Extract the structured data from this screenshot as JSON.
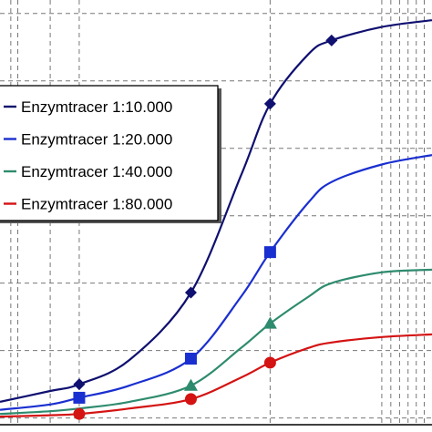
{
  "chart_data": {
    "type": "line",
    "title": "",
    "xlabel": "",
    "ylabel": "",
    "xscale": "log",
    "xlim": [
      0.75,
      3.6
    ],
    "ylim": [
      -0.05,
      3.1
    ],
    "x_gridlines": [
      0.78,
      0.8,
      0.9,
      1,
      2,
      3,
      3.1,
      3.2,
      3.3,
      3.4,
      3.5
    ],
    "y_gridlines": [
      0,
      0.5,
      1,
      1.5,
      2,
      2.5,
      3
    ],
    "grid": true,
    "legend_position": "upper-left",
    "series": [
      {
        "name": "Enzymtracer 1:10.000",
        "color": "#0f1070",
        "marker": "diamond",
        "x": [
          1,
          1.5,
          2,
          2.5
        ],
        "y": [
          0.25,
          0.93,
          2.33,
          2.8
        ],
        "curve": {
          "x": [
            0.75,
            0.9,
            1,
            1.2,
            1.5,
            1.8,
            2,
            2.3,
            2.5,
            3,
            3.6
          ],
          "y": [
            0.12,
            0.2,
            0.25,
            0.43,
            0.93,
            1.8,
            2.33,
            2.7,
            2.8,
            2.9,
            2.95
          ]
        }
      },
      {
        "name": "Enzymtracer 1:20.000",
        "color": "#1a2fd0",
        "marker": "square",
        "x": [
          1,
          1.5,
          2
        ],
        "y": [
          0.15,
          0.44,
          1.23
        ],
        "curve": {
          "x": [
            0.75,
            0.9,
            1,
            1.2,
            1.5,
            1.8,
            2,
            2.3,
            2.5,
            3,
            3.6
          ],
          "y": [
            0.06,
            0.1,
            0.15,
            0.24,
            0.44,
            0.9,
            1.23,
            1.6,
            1.75,
            1.88,
            1.95
          ]
        }
      },
      {
        "name": "Enzymtracer 1:40.000",
        "color": "#2e8b6e",
        "marker": "triangle",
        "x": [
          1.5,
          2
        ],
        "y": [
          0.24,
          0.7
        ],
        "curve": {
          "x": [
            0.75,
            0.9,
            1,
            1.2,
            1.5,
            1.8,
            2,
            2.3,
            2.5,
            3,
            3.6
          ],
          "y": [
            0.03,
            0.05,
            0.07,
            0.12,
            0.24,
            0.52,
            0.7,
            0.9,
            1.0,
            1.08,
            1.1
          ]
        }
      },
      {
        "name": "Enzymtracer 1:80.000",
        "color": "#d41313",
        "marker": "circle",
        "x": [
          1,
          1.5,
          2
        ],
        "y": [
          0.03,
          0.14,
          0.41
        ],
        "curve": {
          "x": [
            0.75,
            0.9,
            1,
            1.2,
            1.5,
            1.8,
            2,
            2.3,
            2.5,
            3,
            3.6
          ],
          "y": [
            0.01,
            0.02,
            0.03,
            0.07,
            0.14,
            0.3,
            0.41,
            0.52,
            0.56,
            0.6,
            0.62
          ]
        }
      }
    ]
  }
}
